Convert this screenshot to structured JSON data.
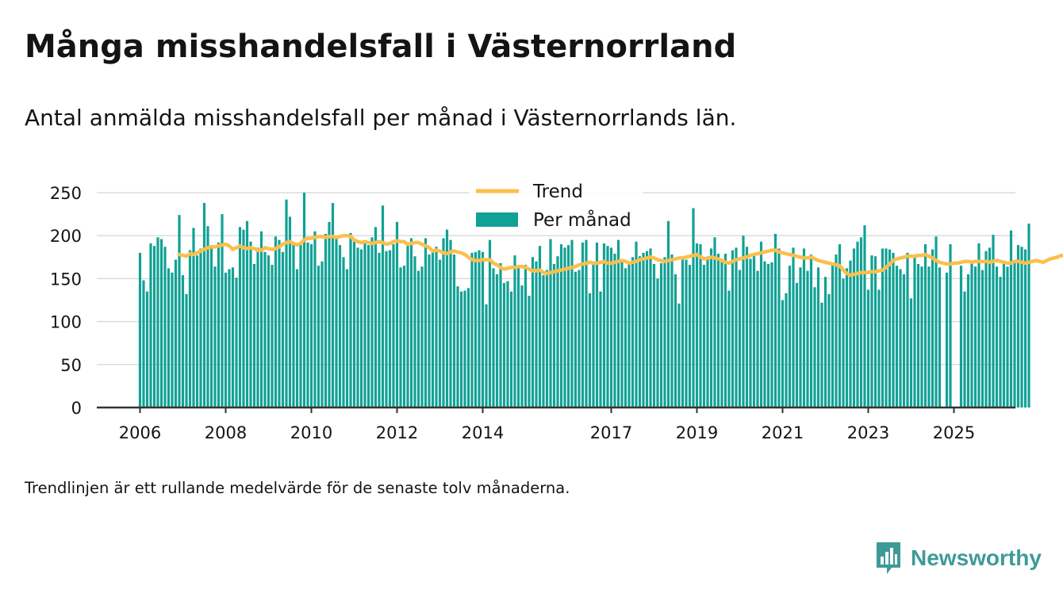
{
  "title": "Många misshandelsfall i Västernorrland",
  "subtitle": "Antal anmälda misshandelsfall per månad i Västernorrlands län.",
  "note": "Trendlinjen är ett rullande medelvärde för de senaste tolv månaderna.",
  "brand": {
    "name": "Newsworthy",
    "color": "#3e9a98",
    "icon": "newsworthy-logo-icon"
  },
  "chart_data": {
    "type": "bar",
    "colors": {
      "bars": "#12a195",
      "trend": "#fbbf4d",
      "grid": "#dcdcdc",
      "axis": "#333333"
    },
    "ylim": [
      0,
      250
    ],
    "yticks": [
      0,
      50,
      100,
      150,
      200,
      250
    ],
    "xticks": [
      "2006",
      "2008",
      "2010",
      "2012",
      "2014",
      "2017",
      "2019",
      "2021",
      "2023",
      "2025"
    ],
    "x_start": "2006-01",
    "grid": true,
    "legend_placement": "top-center",
    "series": [
      {
        "name": "Per månad",
        "type": "bar",
        "values": [
          180,
          148,
          135,
          191,
          188,
          198,
          196,
          187,
          162,
          157,
          172,
          224,
          154,
          132,
          183,
          209,
          177,
          185,
          238,
          211,
          185,
          164,
          192,
          225,
          157,
          161,
          163,
          151,
          210,
          207,
          217,
          193,
          167,
          186,
          205,
          181,
          177,
          166,
          199,
          195,
          181,
          242,
          222,
          190,
          161,
          191,
          250,
          192,
          190,
          205,
          165,
          170,
          202,
          216,
          238,
          200,
          189,
          175,
          161,
          203,
          193,
          186,
          184,
          194,
          189,
          198,
          210,
          180,
          235,
          182,
          183,
          190,
          216,
          163,
          165,
          190,
          197,
          176,
          159,
          164,
          197,
          178,
          183,
          187,
          172,
          197,
          207,
          195,
          178,
          141,
          135,
          136,
          139,
          180,
          181,
          183,
          181,
          120,
          195,
          162,
          155,
          168,
          145,
          147,
          135,
          177,
          165,
          142,
          166,
          130,
          175,
          170,
          188,
          154,
          160,
          196,
          167,
          176,
          190,
          186,
          189,
          195,
          158,
          160,
          192,
          195,
          133,
          167,
          192,
          135,
          191,
          188,
          186,
          179,
          195,
          170,
          162,
          170,
          175,
          193,
          176,
          180,
          182,
          185,
          167,
          150,
          168,
          175,
          217,
          178,
          155,
          121,
          175,
          172,
          166,
          232,
          191,
          190,
          166,
          173,
          185,
          198,
          179,
          173,
          179,
          136,
          183,
          186,
          160,
          200,
          187,
          173,
          178,
          159,
          193,
          170,
          167,
          169,
          202,
          185,
          125,
          133,
          165,
          186,
          145,
          163,
          185,
          159,
          178,
          140,
          163,
          122,
          152,
          132,
          166,
          178,
          190,
          150,
          162,
          171,
          185,
          193,
          198,
          212,
          137,
          177,
          176,
          137,
          185,
          185,
          184,
          180,
          165,
          161,
          155,
          180,
          127,
          175,
          167,
          164,
          190,
          164,
          184,
          199,
          163,
          0,
          157,
          190,
          0,
          0,
          165,
          135,
          155,
          170,
          164,
          191,
          160,
          182,
          186,
          201,
          164,
          152,
          171,
          164,
          206,
          168,
          189,
          187,
          184,
          214
        ]
      },
      {
        "name": "Trend",
        "type": "line",
        "start_month": "2006-12",
        "values": [
          178,
          177,
          176,
          179,
          178,
          180,
          182,
          184,
          186,
          187,
          187,
          188,
          189,
          190,
          188,
          184,
          186,
          188,
          186,
          185,
          186,
          185,
          183,
          183,
          186,
          185,
          184,
          185,
          187,
          190,
          192,
          193,
          191,
          189,
          191,
          195,
          197,
          197,
          198,
          199,
          199,
          198,
          199,
          199,
          198,
          199,
          200,
          200,
          199,
          195,
          193,
          192,
          193,
          192,
          191,
          192,
          193,
          192,
          190,
          191,
          193,
          194,
          193,
          193,
          190,
          191,
          192,
          192,
          190,
          188,
          186,
          182,
          183,
          182,
          180,
          179,
          181,
          182,
          181,
          180,
          178,
          175,
          172,
          171,
          171,
          172,
          172,
          172,
          168,
          166,
          163,
          161,
          162,
          163,
          163,
          164,
          164,
          163,
          161,
          159,
          159,
          160,
          157,
          156,
          157,
          158,
          159,
          160,
          161,
          162,
          163,
          164,
          166,
          167,
          168,
          169,
          168,
          168,
          169,
          170,
          168,
          168,
          169,
          170,
          171,
          170,
          168,
          169,
          170,
          172,
          173,
          174,
          175,
          174,
          172,
          171,
          170,
          171,
          172,
          173,
          174,
          174,
          175,
          176,
          177,
          178,
          175,
          173,
          174,
          175,
          174,
          173,
          171,
          169,
          168,
          170,
          172,
          173,
          174,
          175,
          177,
          178,
          179,
          180,
          181,
          182,
          183,
          183,
          181,
          180,
          179,
          178,
          177,
          176,
          175,
          174,
          174,
          175,
          173,
          171,
          170,
          169,
          168,
          167,
          166,
          165,
          160,
          156,
          154,
          155,
          156,
          157,
          157,
          157,
          158,
          158,
          159,
          160,
          163,
          167,
          171,
          173,
          174,
          175,
          176,
          176,
          176,
          177,
          177,
          178,
          176,
          174,
          171,
          169,
          168,
          167,
          167,
          168,
          168,
          169,
          170,
          170,
          169,
          170,
          170,
          170,
          170,
          169,
          170,
          171,
          170,
          169,
          168,
          168,
          170,
          170,
          169,
          168,
          169,
          170,
          171,
          170,
          169,
          171,
          173,
          174,
          175,
          177,
          176,
          178,
          183
        ]
      }
    ]
  }
}
